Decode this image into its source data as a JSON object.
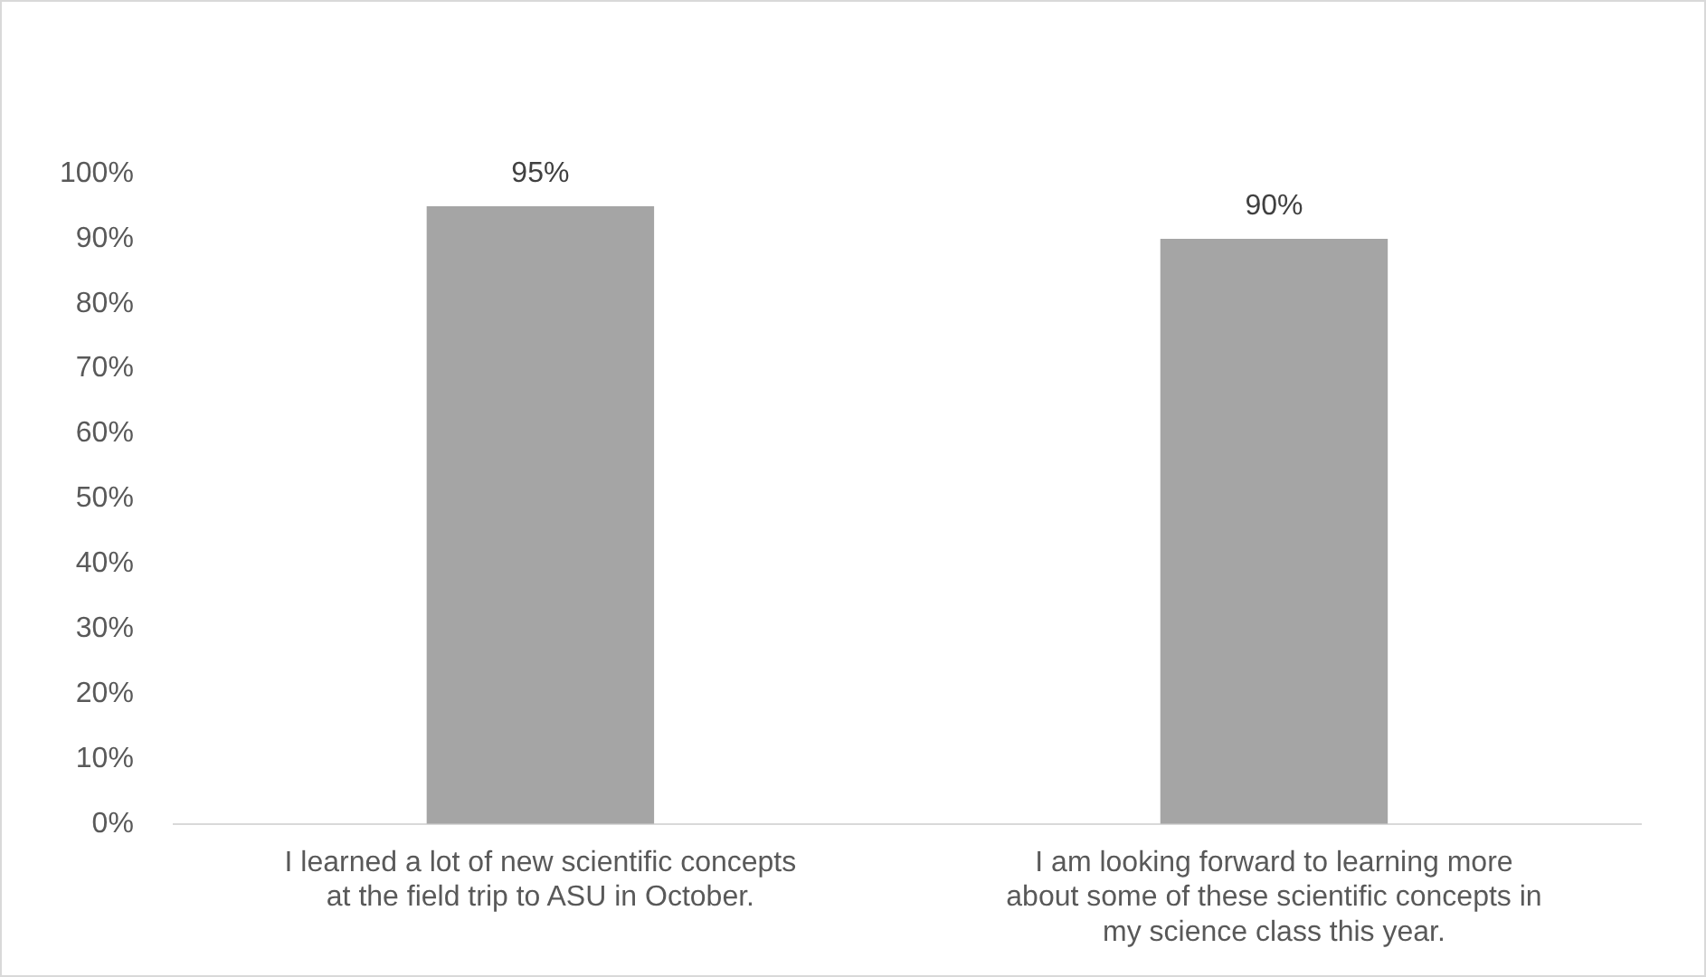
{
  "chart_data": {
    "type": "bar",
    "categories": [
      "I learned a lot of new scientific concepts at the field trip to ASU in October.",
      "I am looking forward to learning more about some of these scientific concepts in my science class this year."
    ],
    "values": [
      95,
      90
    ],
    "color": "#a5a5a5",
    "value_labels": [
      "95%",
      "90%"
    ],
    "ylim": [
      0,
      100
    ],
    "yticks": [
      {
        "value": 0,
        "label": "0%"
      },
      {
        "value": 10,
        "label": "10%"
      },
      {
        "value": 20,
        "label": "20%"
      },
      {
        "value": 30,
        "label": "30%"
      },
      {
        "value": 40,
        "label": "40%"
      },
      {
        "value": 50,
        "label": "50%"
      },
      {
        "value": 60,
        "label": "60%"
      },
      {
        "value": 70,
        "label": "70%"
      },
      {
        "value": 80,
        "label": "80%"
      },
      {
        "value": 90,
        "label": "90%"
      },
      {
        "value": 100,
        "label": "100%"
      }
    ],
    "grid": false,
    "legend": false
  }
}
